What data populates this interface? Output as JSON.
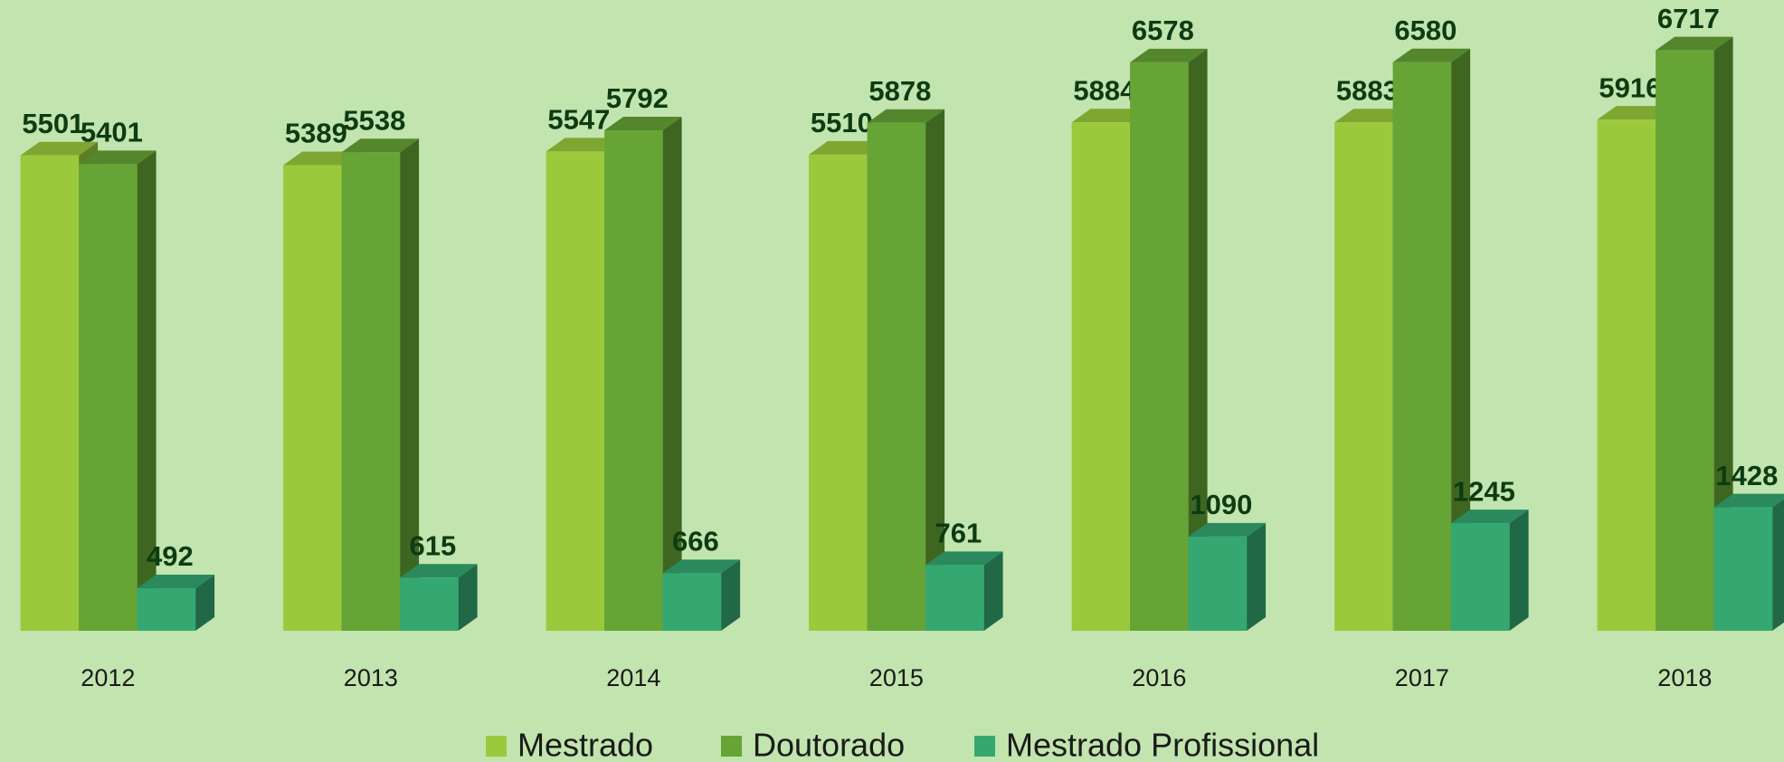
{
  "chart_data": {
    "type": "bar3d",
    "categories": [
      "2012",
      "2013",
      "2014",
      "2015",
      "2016",
      "2017",
      "2018"
    ],
    "series": [
      {
        "name": "Mestrado",
        "color": "#9aca3c",
        "values": [
          5501,
          5389,
          5547,
          5510,
          5884,
          5883,
          5916
        ]
      },
      {
        "name": "Doutorado",
        "color": "#66a436",
        "values": [
          5401,
          5538,
          5792,
          5878,
          6578,
          6580,
          6717
        ]
      },
      {
        "name": "Mestrado Profissional",
        "color": "#35a872",
        "values": [
          492,
          615,
          666,
          761,
          1090,
          1245,
          1428
        ]
      }
    ],
    "ylim": [
      0,
      7300
    ],
    "legend": "bottom"
  }
}
